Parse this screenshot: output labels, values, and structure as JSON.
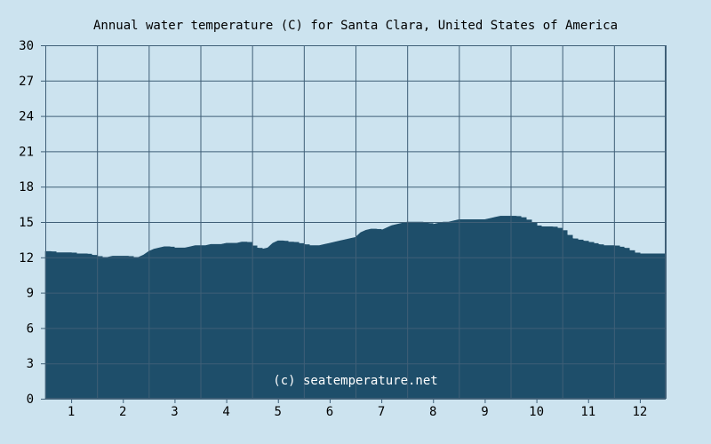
{
  "chart_data": {
    "type": "area",
    "title": "Annual water temperature (C) for Santa Clara, United States of America",
    "watermark": "(c) seatemperature.net",
    "xlabel": "",
    "ylabel": "",
    "x_ticks": [
      "1",
      "2",
      "3",
      "4",
      "5",
      "6",
      "7",
      "8",
      "9",
      "10",
      "11",
      "12"
    ],
    "y_ticks": [
      "0",
      "3",
      "6",
      "9",
      "12",
      "15",
      "18",
      "21",
      "24",
      "27",
      "30"
    ],
    "xlim": [
      0.5,
      12.5
    ],
    "ylim": [
      0,
      30
    ],
    "grid": true,
    "series": [
      {
        "x": [
          0.5,
          0.6,
          0.7,
          0.8,
          0.9,
          1.0,
          1.1,
          1.2,
          1.3,
          1.4,
          1.5,
          1.6,
          1.7,
          1.8,
          1.9,
          2.0,
          2.1,
          2.2,
          2.3,
          2.4,
          2.5,
          2.6,
          2.7,
          2.8,
          2.9,
          3.0,
          3.1,
          3.2,
          3.3,
          3.4,
          3.5,
          3.6,
          3.7,
          3.8,
          3.9,
          4.0,
          4.1,
          4.2,
          4.3,
          4.4,
          4.5,
          4.6,
          4.7,
          4.8,
          4.9,
          5.0,
          5.1,
          5.2,
          5.3,
          5.4,
          5.5,
          5.6,
          5.7,
          5.8,
          5.9,
          6.0,
          6.1,
          6.2,
          6.3,
          6.4,
          6.5,
          6.6,
          6.7,
          6.8,
          6.9,
          7.0,
          7.1,
          7.2,
          7.3,
          7.4,
          7.5,
          7.6,
          7.7,
          7.8,
          7.9,
          8.0,
          8.1,
          8.2,
          8.3,
          8.4,
          8.5,
          8.6,
          8.7,
          8.8,
          8.9,
          9.0,
          9.1,
          9.2,
          9.3,
          9.4,
          9.5,
          9.6,
          9.7,
          9.8,
          9.9,
          10.0,
          10.1,
          10.2,
          10.3,
          10.4,
          10.5,
          10.6,
          10.7,
          10.8,
          10.9,
          11.0,
          11.1,
          11.2,
          11.3,
          11.4,
          11.5,
          11.6,
          11.7,
          11.8,
          11.9,
          12.0,
          12.1,
          12.2,
          12.3,
          12.4,
          12.5
        ],
        "values": [
          12.5,
          12.5,
          12.4,
          12.4,
          12.4,
          12.4,
          12.3,
          12.3,
          12.3,
          12.2,
          12.1,
          12.0,
          12.0,
          12.1,
          12.1,
          12.1,
          12.1,
          12.0,
          12.0,
          12.2,
          12.5,
          12.7,
          12.8,
          12.9,
          12.9,
          12.8,
          12.8,
          12.8,
          12.9,
          13.0,
          13.0,
          13.0,
          13.1,
          13.1,
          13.1,
          13.2,
          13.2,
          13.2,
          13.3,
          13.3,
          13.0,
          12.8,
          12.7,
          12.8,
          13.2,
          13.4,
          13.4,
          13.3,
          13.3,
          13.2,
          13.1,
          13.0,
          13.0,
          13.0,
          13.1,
          13.2,
          13.3,
          13.4,
          13.5,
          13.6,
          13.7,
          14.1,
          14.3,
          14.4,
          14.4,
          14.3,
          14.5,
          14.7,
          14.8,
          14.9,
          15.0,
          15.0,
          15.0,
          15.0,
          14.9,
          14.8,
          14.9,
          15.0,
          15.0,
          15.1,
          15.2,
          15.2,
          15.2,
          15.2,
          15.2,
          15.2,
          15.3,
          15.4,
          15.5,
          15.5,
          15.5,
          15.5,
          15.4,
          15.2,
          15.0,
          14.7,
          14.6,
          14.6,
          14.6,
          14.5,
          14.3,
          13.9,
          13.6,
          13.5,
          13.4,
          13.3,
          13.2,
          13.1,
          13.0,
          13.0,
          13.0,
          12.9,
          12.8,
          12.6,
          12.4,
          12.3,
          12.3,
          12.3,
          12.3,
          12.3,
          12.3
        ]
      }
    ],
    "colors": {
      "background": "#cce3ef",
      "plot_background": "#cce3ef",
      "area_fill": "#1e4e6a",
      "grid": "#3f5f77",
      "axis": "#3f5f77",
      "text": "#000000",
      "watermark": "#ffffff"
    }
  }
}
